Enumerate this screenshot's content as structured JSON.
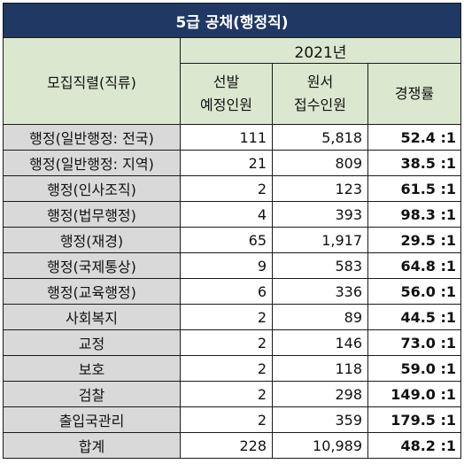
{
  "title": "5급 공채(행정직)",
  "year": "2021년",
  "col_category": "모집직렬(직류)",
  "col_planned_l1": "선발",
  "col_planned_l2": "예정인원",
  "col_applied_l1": "원서",
  "col_applied_l2": "접수인원",
  "col_ratio": "경쟁률",
  "rows": [
    {
      "category": "행정(일반행정: 전국)",
      "planned": "111",
      "applied": "5,818",
      "ratio": "52.4 :1"
    },
    {
      "category": "행정(일반행정: 지역)",
      "planned": "21",
      "applied": "809",
      "ratio": "38.5 :1"
    },
    {
      "category": "행정(인사조직)",
      "planned": "2",
      "applied": "123",
      "ratio": "61.5 :1"
    },
    {
      "category": "행정(법무행정)",
      "planned": "4",
      "applied": "393",
      "ratio": "98.3 :1"
    },
    {
      "category": "행정(재경)",
      "planned": "65",
      "applied": "1,917",
      "ratio": "29.5 :1"
    },
    {
      "category": "행정(국제통상)",
      "planned": "9",
      "applied": "583",
      "ratio": "64.8 :1"
    },
    {
      "category": "행정(교육행정)",
      "planned": "6",
      "applied": "336",
      "ratio": "56.0 :1"
    },
    {
      "category": "사회복지",
      "planned": "2",
      "applied": "89",
      "ratio": "44.5 :1"
    },
    {
      "category": "교정",
      "planned": "2",
      "applied": "146",
      "ratio": "73.0 :1"
    },
    {
      "category": "보호",
      "planned": "2",
      "applied": "118",
      "ratio": "59.0 :1"
    },
    {
      "category": "검찰",
      "planned": "2",
      "applied": "298",
      "ratio": "149.0 :1"
    },
    {
      "category": "출입국관리",
      "planned": "2",
      "applied": "359",
      "ratio": "179.5 :1"
    }
  ],
  "total": {
    "category": "합계",
    "planned": "228",
    "applied": "10,989",
    "ratio": "48.2 :1"
  }
}
